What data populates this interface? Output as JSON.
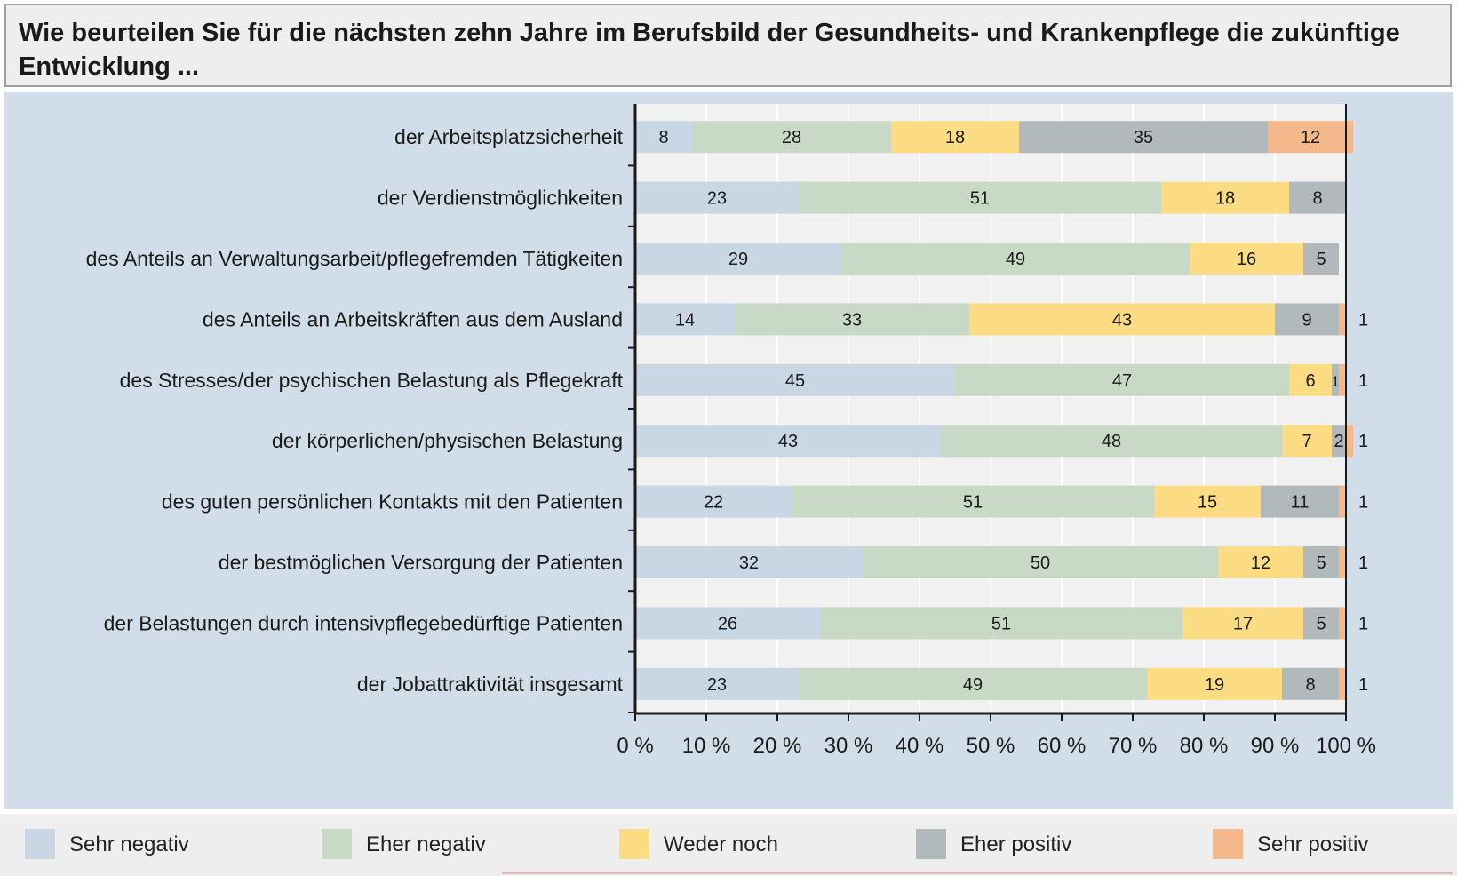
{
  "title": "Wie beurteilen Sie für die nächsten zehn Jahre im Berufsbild der Gesundheits- und Krankenpflege die zukünftige Entwicklung ...",
  "chart_data": {
    "type": "bar",
    "orientation": "horizontal",
    "stacked": true,
    "categories": [
      "der Arbeitsplatzsicherheit",
      "der Verdienstmöglichkeiten",
      "des Anteils an Verwaltungsarbeit/pflegefremden Tätigkeiten",
      "des Anteils an Arbeitskräften aus dem Ausland",
      "des Stresses/der psychischen Belastung als Pflegekraft",
      "der körperlichen/physischen Belastung",
      "des guten persönlichen Kontakts mit den Patienten",
      "der bestmöglichen Versorgung der Patienten",
      "der Belastungen durch intensivpflegebedürftige Patienten",
      "der Jobattraktivität insgesamt"
    ],
    "series": [
      {
        "name": "Sehr negativ",
        "color": "#c9d7e4",
        "values": [
          8,
          23,
          29,
          14,
          45,
          43,
          22,
          32,
          26,
          23
        ]
      },
      {
        "name": "Eher negativ",
        "color": "#c8d9c5",
        "values": [
          28,
          51,
          49,
          33,
          47,
          48,
          51,
          50,
          51,
          49
        ]
      },
      {
        "name": "Weder noch",
        "color": "#fcdc82",
        "values": [
          18,
          18,
          16,
          43,
          6,
          7,
          15,
          12,
          17,
          19
        ]
      },
      {
        "name": "Eher positiv",
        "color": "#b2b9bd",
        "values": [
          35,
          8,
          5,
          9,
          1,
          2,
          11,
          5,
          5,
          8
        ]
      },
      {
        "name": "Sehr positiv",
        "color": "#f5b88a",
        "values": [
          12,
          0,
          0,
          1,
          1,
          1,
          1,
          1,
          1,
          1
        ]
      }
    ],
    "x_ticks": [
      "0 %",
      "10 %",
      "20 %",
      "30 %",
      "40 %",
      "50 %",
      "60 %",
      "70 %",
      "80 %",
      "90 %",
      "100 %"
    ],
    "xlim": [
      0,
      100
    ],
    "legend_position": "bottom",
    "grid": "vertical"
  }
}
